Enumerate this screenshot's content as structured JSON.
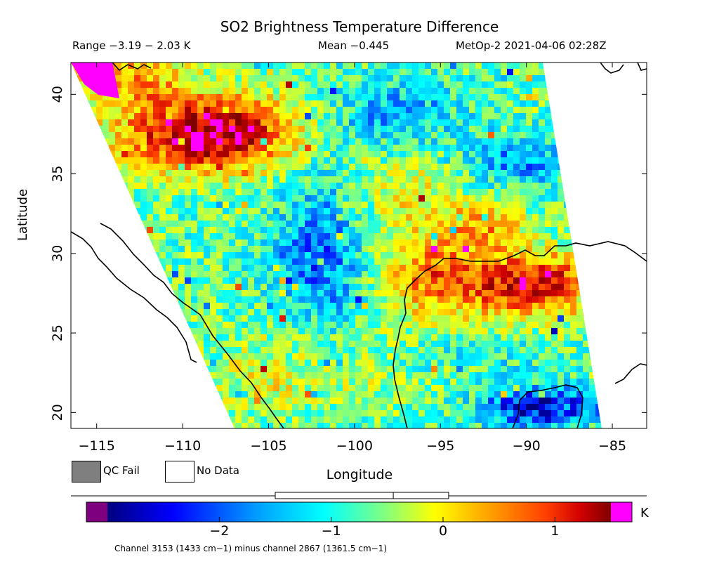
{
  "header": {
    "title": "SO2 Brightness Temperature Difference",
    "range_text": "Range −3.19 − 2.03 K",
    "mean_text": "Mean −0.445",
    "satellite_text": "MetOp-2 2021-04-06 02:28Z"
  },
  "axes": {
    "x_label": "Longitude",
    "y_label": "Latitude",
    "x_ticks": [
      "−115",
      "−110",
      "−105",
      "−100",
      "−95",
      "−90",
      "−85"
    ],
    "y_ticks": [
      "40",
      "35",
      "30",
      "25",
      "20"
    ],
    "lon_range": [
      -116.5,
      -83.0
    ],
    "lat_range": [
      19.0,
      42.0
    ]
  },
  "legend": {
    "qc_fail": "QC Fail",
    "no_data": "No Data"
  },
  "colorbar": {
    "unit": "K",
    "ticks": [
      "−2",
      "−1",
      "0",
      "1"
    ],
    "tick_values": [
      -2,
      -1,
      0,
      1
    ],
    "min": -3.0,
    "max": 1.5,
    "stats_box": {
      "low": -1.5,
      "mean": -0.445,
      "high": 0.05
    },
    "colors": [
      "#7e007e",
      "#000080",
      "#0000ff",
      "#00a0ff",
      "#00ffff",
      "#80ff80",
      "#ffff00",
      "#ffa000",
      "#ff4000",
      "#d00000",
      "#800000",
      "#ff00ff"
    ]
  },
  "footnote": "Channel 3153 (1433 cm−1) minus channel 2867 (1361.5 cm−1)"
}
